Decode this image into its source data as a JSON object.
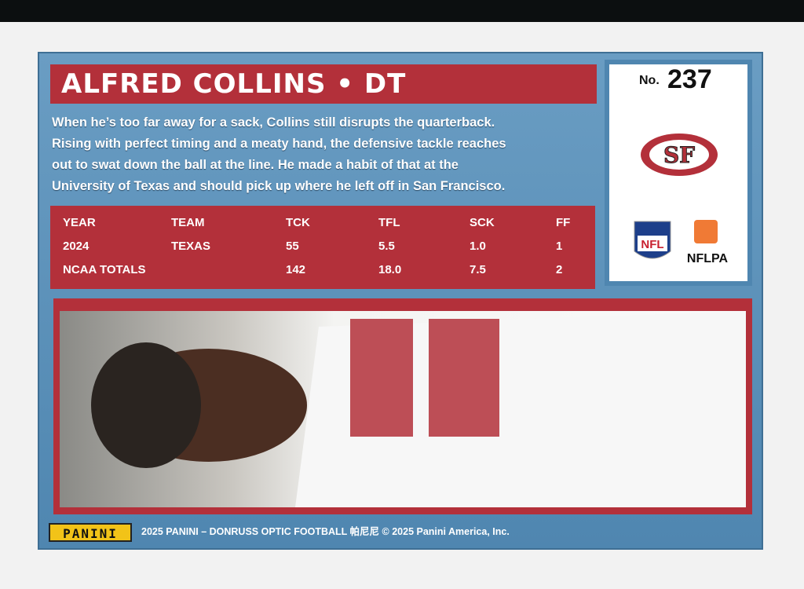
{
  "header": {
    "title": "ALFRED COLLINS • DT"
  },
  "card_number": {
    "prefix": "No.",
    "number": "237"
  },
  "bio": {
    "lines": [
      "When he’s too far away for a sack, Collins still disrupts the quarterback.",
      "Rising with perfect timing and a meaty hand, the defensive tackle reaches",
      "out to swat down the ball at the line. He made a habit of that at the",
      "University of Texas and should pick up where he left off in San Francisco."
    ]
  },
  "table": {
    "columns": [
      "YEAR",
      "TEAM",
      "TCK",
      "TFL",
      "SCK",
      "FF"
    ],
    "rows": [
      [
        "2024",
        "TEXAS",
        "55",
        "5.5",
        "1.0",
        "1"
      ],
      [
        "NCAA TOTALS",
        "",
        "142",
        "18.0",
        "7.5",
        "2"
      ]
    ]
  },
  "logos": {
    "team": "SF",
    "league": "NFL",
    "union": "NFLPA"
  },
  "footer": {
    "brand": "PANINI",
    "copyright": "2025 PANINI – DONRUSS OPTIC FOOTBALL 帕尼尼 © 2025 Panini America, Inc."
  }
}
